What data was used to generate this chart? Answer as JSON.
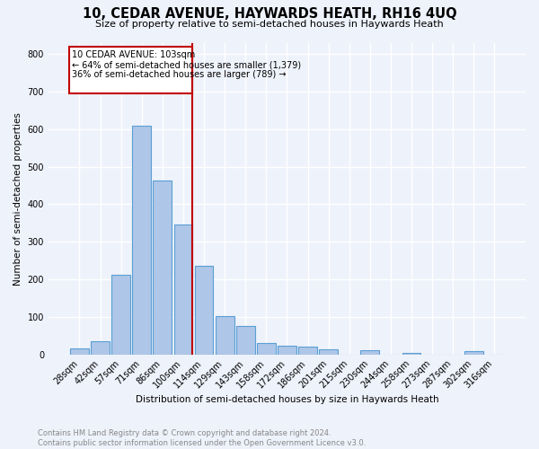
{
  "title": "10, CEDAR AVENUE, HAYWARDS HEATH, RH16 4UQ",
  "subtitle": "Size of property relative to semi-detached houses in Haywards Heath",
  "xlabel": "Distribution of semi-detached houses by size in Haywards Heath",
  "ylabel": "Number of semi-detached properties",
  "categories": [
    "28sqm",
    "42sqm",
    "57sqm",
    "71sqm",
    "86sqm",
    "100sqm",
    "114sqm",
    "129sqm",
    "143sqm",
    "158sqm",
    "172sqm",
    "186sqm",
    "201sqm",
    "215sqm",
    "230sqm",
    "244sqm",
    "258sqm",
    "273sqm",
    "287sqm",
    "302sqm",
    "316sqm"
  ],
  "values": [
    15,
    35,
    213,
    608,
    462,
    347,
    236,
    102,
    76,
    30,
    22,
    21,
    13,
    0,
    10,
    0,
    5,
    0,
    0,
    8,
    0
  ],
  "bar_color": "#aec6e8",
  "bar_edge_color": "#5a9fd4",
  "highlight_index": 5,
  "highlight_color": "#c00000",
  "property_label": "10 CEDAR AVENUE: 103sqm",
  "annotation_smaller": "← 64% of semi-detached houses are smaller (1,379)",
  "annotation_larger": "36% of semi-detached houses are larger (789) →",
  "footnote": "Contains HM Land Registry data © Crown copyright and database right 2024.\nContains public sector information licensed under the Open Government Licence v3.0.",
  "ylim": [
    0,
    830
  ],
  "bg_color": "#eef2fb",
  "grid_color": "#ffffff"
}
